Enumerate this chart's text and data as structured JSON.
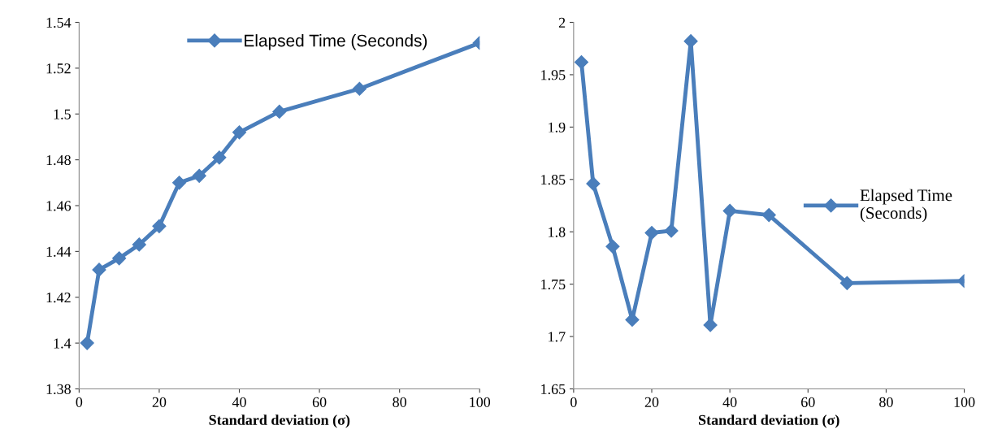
{
  "chart_data": [
    {
      "type": "line",
      "xlabel": "Standard deviation (σ)",
      "x": [
        2,
        5,
        10,
        15,
        20,
        25,
        30,
        35,
        40,
        50,
        70,
        100
      ],
      "series": [
        {
          "name": "Elapsed Time (Seconds)",
          "color": "#4a7ebb",
          "values": [
            1.4,
            1.432,
            1.437,
            1.443,
            1.451,
            1.47,
            1.473,
            1.481,
            1.492,
            1.501,
            1.511,
            1.531
          ]
        }
      ],
      "xlim": [
        0,
        100
      ],
      "xticks": [
        0,
        20,
        40,
        60,
        80,
        100
      ],
      "ylim": [
        1.38,
        1.54
      ],
      "yticks": [
        1.38,
        1.4,
        1.42,
        1.44,
        1.46,
        1.48,
        1.5,
        1.52,
        1.54
      ],
      "grid": false,
      "legend": "top right",
      "marker": "diamond",
      "line_style": "solid"
    },
    {
      "type": "line",
      "xlabel": "Standard deviation (σ)",
      "x": [
        2,
        5,
        10,
        15,
        20,
        25,
        30,
        35,
        40,
        50,
        70,
        100
      ],
      "series": [
        {
          "name": "Elapsed Time\n(Seconds)",
          "color": "#4a7ebb",
          "values": [
            1.962,
            1.846,
            1.786,
            1.716,
            1.799,
            1.801,
            1.982,
            1.711,
            1.82,
            1.816,
            1.751,
            1.753
          ]
        }
      ],
      "xlim": [
        0,
        100
      ],
      "xticks": [
        0,
        20,
        40,
        60,
        80,
        100
      ],
      "ylim": [
        1.65,
        2
      ],
      "yticks": [
        1.65,
        1.7,
        1.75,
        1.8,
        1.85,
        1.9,
        1.95,
        2
      ],
      "grid": false,
      "legend": "right",
      "marker": "diamond",
      "line_style": "solid"
    }
  ]
}
